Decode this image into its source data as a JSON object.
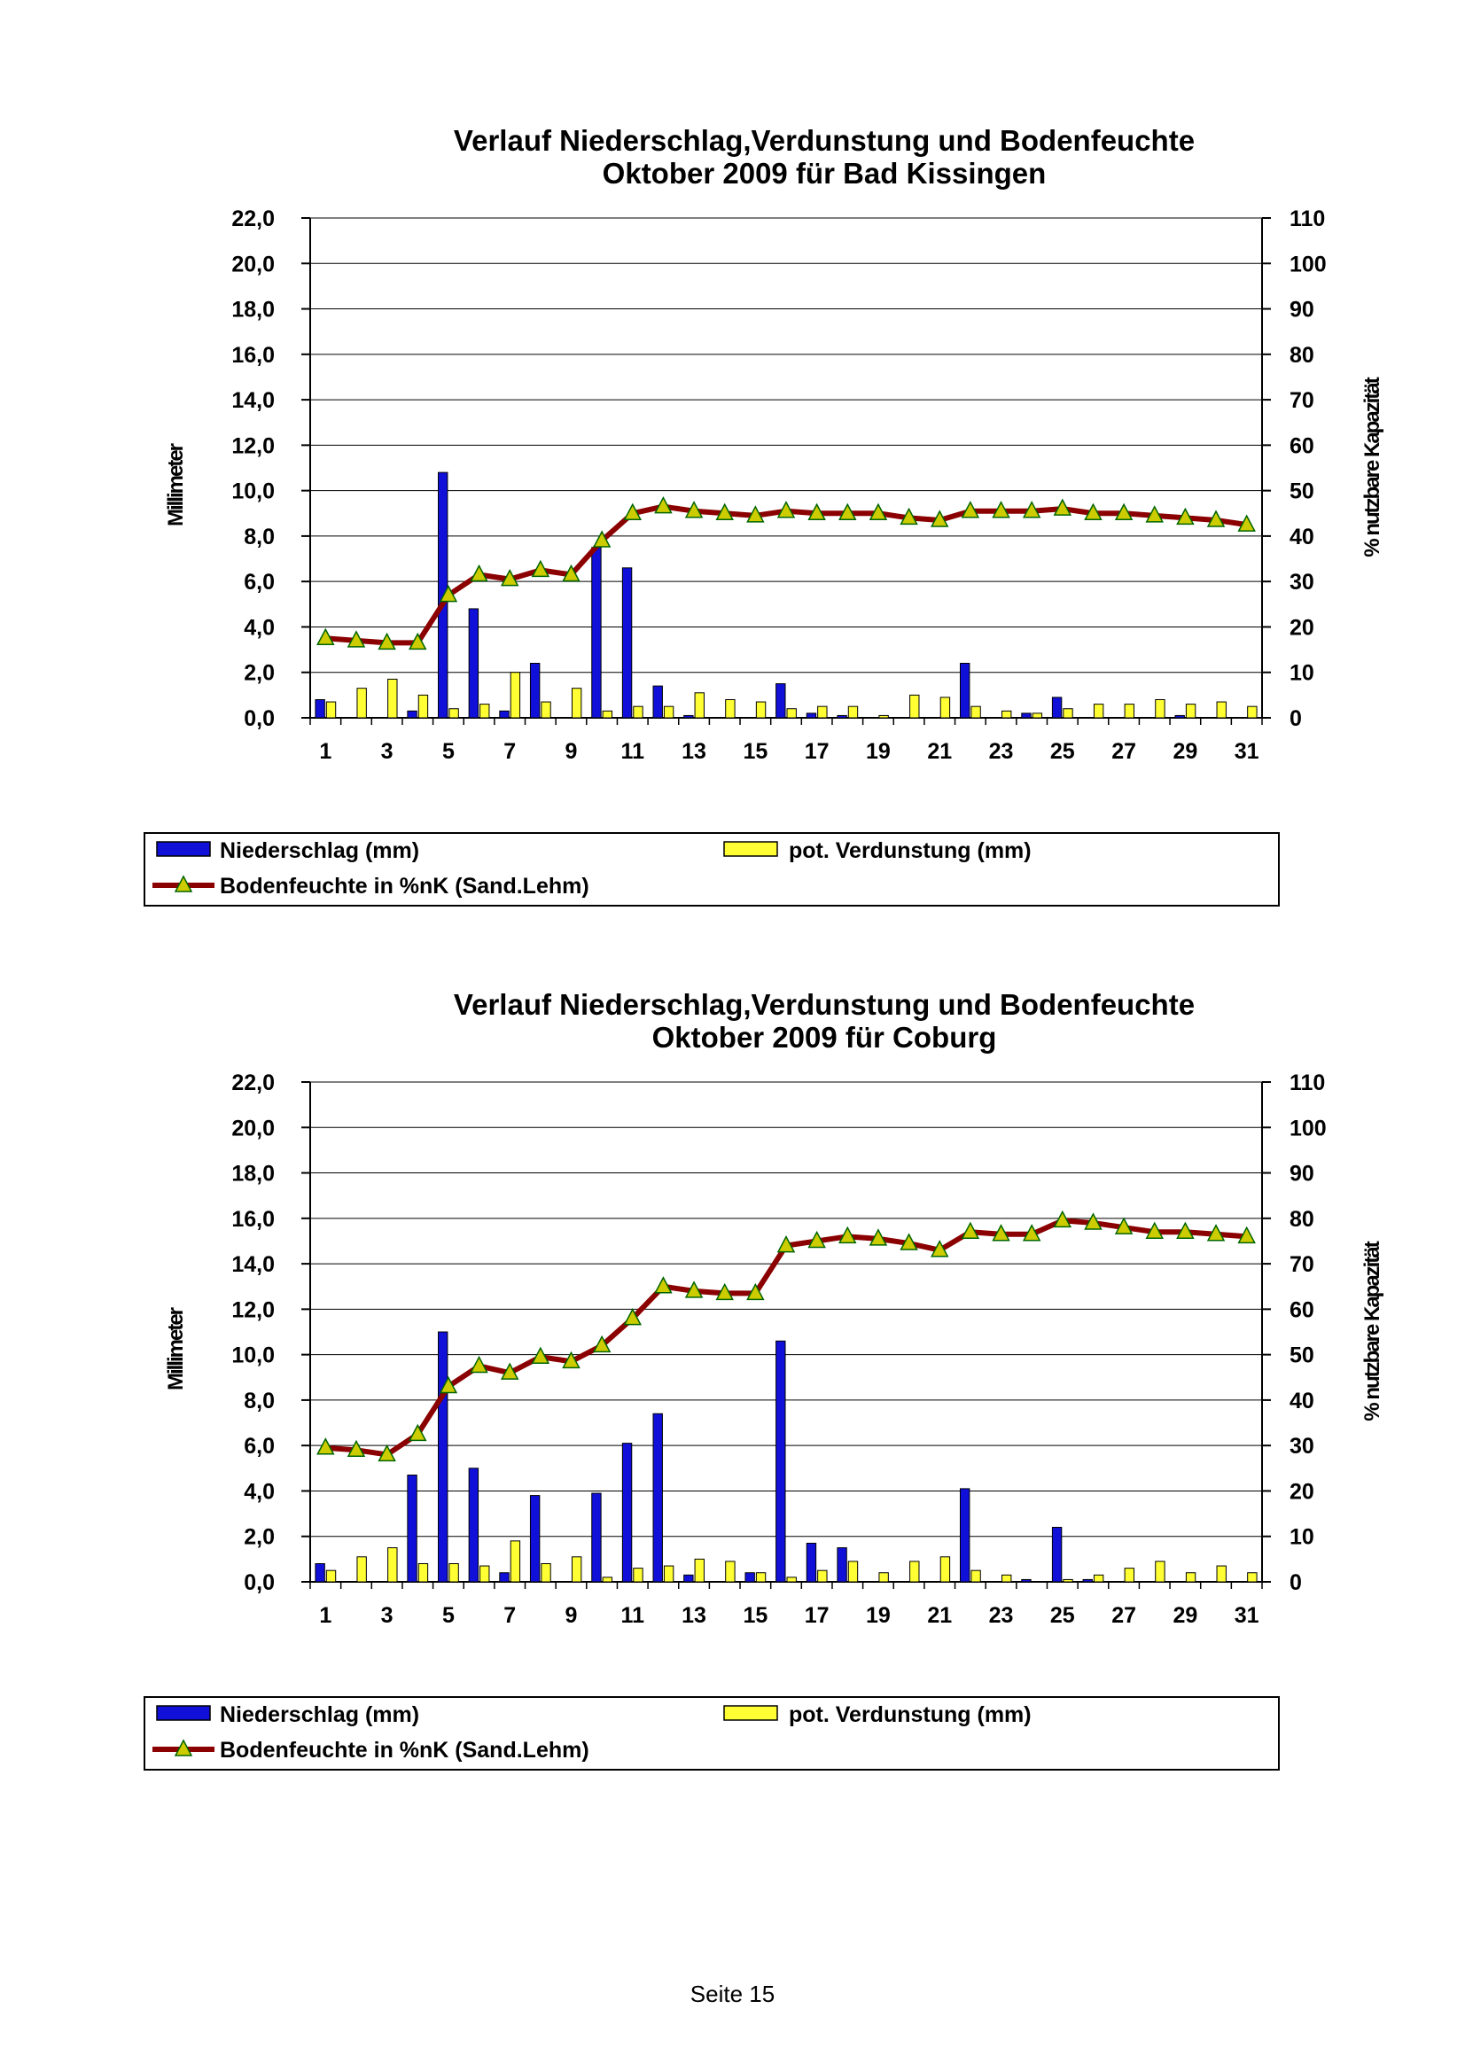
{
  "footer": {
    "page_label": "Seite 15"
  },
  "colors": {
    "precip": "#1010d8",
    "evap": "#ffff33",
    "soil_line": "#8b0000",
    "soil_marker": "#cccc00"
  },
  "legend": {
    "precip": "Niederschlag (mm)",
    "evap": "pot. Verdunstung (mm)",
    "soil": "Bodenfeuchte in %nK (Sand.Lehm)"
  },
  "chart_data": [
    {
      "type": "bar",
      "title_line1": "Verlauf Niederschlag,Verdunstung und Bodenfeuchte",
      "title_line2": "Oktober 2009 für Bad Kissingen",
      "ylabel": "Millimeter",
      "y2label": "% nutzbare Kapazität",
      "ylim": [
        0,
        22
      ],
      "y2lim": [
        0,
        110
      ],
      "y_ticks": [
        "0,0",
        "2,0",
        "4,0",
        "6,0",
        "8,0",
        "10,0",
        "12,0",
        "14,0",
        "16,0",
        "18,0",
        "20,0",
        "22,0"
      ],
      "y2_ticks": [
        "0",
        "10",
        "20",
        "30",
        "40",
        "50",
        "60",
        "70",
        "80",
        "90",
        "100",
        "110"
      ],
      "x_tick_labels": [
        "1",
        "3",
        "5",
        "7",
        "9",
        "11",
        "13",
        "15",
        "17",
        "19",
        "21",
        "23",
        "25",
        "27",
        "29",
        "31"
      ],
      "days": [
        1,
        2,
        3,
        4,
        5,
        6,
        7,
        8,
        9,
        10,
        11,
        12,
        13,
        14,
        15,
        16,
        17,
        18,
        19,
        20,
        21,
        22,
        23,
        24,
        25,
        26,
        27,
        28,
        29,
        30,
        31
      ],
      "series": [
        {
          "name": "Niederschlag (mm)",
          "values": [
            0.8,
            0,
            0,
            0.3,
            10.8,
            4.8,
            0.3,
            2.4,
            0,
            7.5,
            6.6,
            1.4,
            0.1,
            0,
            0,
            1.5,
            0.2,
            0.1,
            0,
            0,
            0,
            2.4,
            0,
            0.2,
            0.9,
            0,
            0,
            0,
            0.1,
            0,
            0
          ]
        },
        {
          "name": "pot. Verdunstung (mm)",
          "values": [
            0.7,
            1.3,
            1.7,
            1.0,
            0.4,
            0.6,
            2.0,
            0.7,
            1.3,
            0.3,
            0.5,
            0.5,
            1.1,
            0.8,
            0.7,
            0.4,
            0.5,
            0.5,
            0.1,
            1.0,
            0.9,
            0.5,
            0.3,
            0.2,
            0.4,
            0.6,
            0.6,
            0.8,
            0.6,
            0.7,
            0.5
          ]
        },
        {
          "name": "Bodenfeuchte in %nK (Sand.Lehm)",
          "axis": "secondary",
          "values": [
            17.5,
            17,
            16.5,
            16.5,
            27,
            31.5,
            30.5,
            32.5,
            31.5,
            39,
            45,
            46.5,
            45.5,
            45,
            44.5,
            45.5,
            45,
            45,
            45,
            44,
            43.5,
            45.5,
            45.5,
            45.5,
            46,
            45,
            45,
            44.5,
            44,
            43.5,
            42.5
          ]
        }
      ]
    },
    {
      "type": "bar",
      "title_line1": "Verlauf Niederschlag,Verdunstung und Bodenfeuchte",
      "title_line2": "Oktober 2009 für Coburg",
      "ylabel": "Millimeter",
      "y2label": "% nutzbare Kapazität",
      "ylim": [
        0,
        22
      ],
      "y2lim": [
        0,
        110
      ],
      "y_ticks": [
        "0,0",
        "2,0",
        "4,0",
        "6,0",
        "8,0",
        "10,0",
        "12,0",
        "14,0",
        "16,0",
        "18,0",
        "20,0",
        "22,0"
      ],
      "y2_ticks": [
        "0",
        "10",
        "20",
        "30",
        "40",
        "50",
        "60",
        "70",
        "80",
        "90",
        "100",
        "110"
      ],
      "x_tick_labels": [
        "1",
        "3",
        "5",
        "7",
        "9",
        "11",
        "13",
        "15",
        "17",
        "19",
        "21",
        "23",
        "25",
        "27",
        "29",
        "31"
      ],
      "days": [
        1,
        2,
        3,
        4,
        5,
        6,
        7,
        8,
        9,
        10,
        11,
        12,
        13,
        14,
        15,
        16,
        17,
        18,
        19,
        20,
        21,
        22,
        23,
        24,
        25,
        26,
        27,
        28,
        29,
        30,
        31
      ],
      "series": [
        {
          "name": "Niederschlag (mm)",
          "values": [
            0.8,
            0,
            0,
            4.7,
            11.0,
            5.0,
            0.4,
            3.8,
            0,
            3.9,
            6.1,
            7.4,
            0.3,
            0,
            0.4,
            10.6,
            1.7,
            1.5,
            0,
            0,
            0,
            4.1,
            0,
            0.1,
            2.4,
            0.1,
            0,
            0,
            0,
            0,
            0
          ]
        },
        {
          "name": "pot. Verdunstung (mm)",
          "values": [
            0.5,
            1.1,
            1.5,
            0.8,
            0.8,
            0.7,
            1.8,
            0.8,
            1.1,
            0.2,
            0.6,
            0.7,
            1.0,
            0.9,
            0.4,
            0.2,
            0.5,
            0.9,
            0.4,
            0.9,
            1.1,
            0.5,
            0.3,
            0,
            0.1,
            0.3,
            0.6,
            0.9,
            0.4,
            0.7,
            0.4
          ]
        },
        {
          "name": "Bodenfeuchte in %nK (Sand.Lehm)",
          "axis": "secondary",
          "values": [
            29.5,
            29,
            28,
            32.5,
            43,
            47.5,
            46,
            49.5,
            48.5,
            52,
            58,
            65,
            64,
            63.5,
            63.5,
            74,
            75,
            76,
            75.5,
            74.5,
            73,
            77,
            76.5,
            76.5,
            79.5,
            79,
            78,
            77,
            77,
            76.5,
            76
          ]
        }
      ]
    }
  ]
}
